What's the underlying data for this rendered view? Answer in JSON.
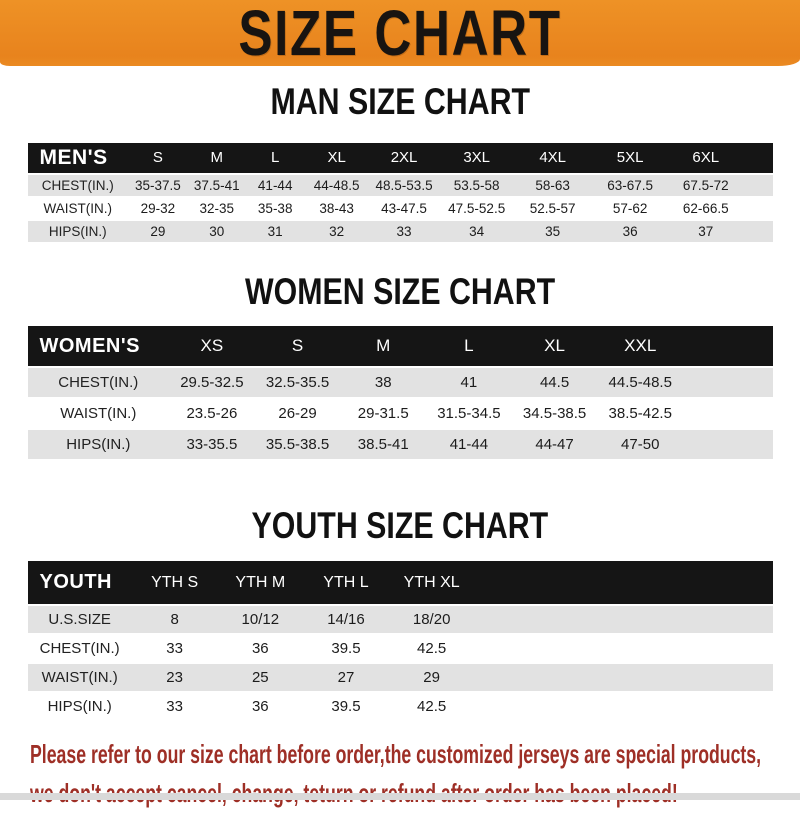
{
  "banner": {
    "title": "SIZE CHART"
  },
  "sections": [
    {
      "title": "MAN SIZE CHART",
      "header_label": "MEN'S",
      "columns": [
        "S",
        "M",
        "L",
        "XL",
        "2XL",
        "3XL",
        "4XL",
        "5XL",
        "6XL"
      ],
      "rows": [
        {
          "label": "CHEST(IN.)",
          "values": [
            "35-37.5",
            "37.5-41",
            "41-44",
            "44-48.5",
            "48.5-53.5",
            "53.5-58",
            "58-63",
            "63-67.5",
            "67.5-72"
          ]
        },
        {
          "label": "WAIST(IN.)",
          "values": [
            "29-32",
            "32-35",
            "35-38",
            "38-43",
            "43-47.5",
            "47.5-52.5",
            "52.5-57",
            "57-62",
            "62-66.5"
          ]
        },
        {
          "label": "HIPS(IN.)",
          "values": [
            "29",
            "30",
            "31",
            "32",
            "33",
            "34",
            "35",
            "36",
            "37"
          ]
        }
      ]
    },
    {
      "title": "WOMEN SIZE CHART",
      "header_label": "WOMEN'S",
      "columns": [
        "XS",
        "S",
        "M",
        "L",
        "XL",
        "XXL"
      ],
      "rows": [
        {
          "label": "CHEST(IN.)",
          "values": [
            "29.5-32.5",
            "32.5-35.5",
            "38",
            "41",
            "44.5",
            "44.5-48.5"
          ]
        },
        {
          "label": "WAIST(IN.)",
          "values": [
            "23.5-26",
            "26-29",
            "29-31.5",
            "31.5-34.5",
            "34.5-38.5",
            "38.5-42.5"
          ]
        },
        {
          "label": "HIPS(IN.)",
          "values": [
            "33-35.5",
            "35.5-38.5",
            "38.5-41",
            "41-44",
            "44-47",
            "47-50"
          ]
        }
      ]
    },
    {
      "title": "YOUTH SIZE CHART",
      "header_label": "YOUTH",
      "columns": [
        "YTH S",
        "YTH M",
        "YTH L",
        "YTH XL"
      ],
      "rows": [
        {
          "label": "U.S.SIZE",
          "values": [
            "8",
            "10/12",
            "14/16",
            "18/20"
          ]
        },
        {
          "label": "CHEST(IN.)",
          "values": [
            "33",
            "36",
            "39.5",
            "42.5"
          ]
        },
        {
          "label": "WAIST(IN.)",
          "values": [
            "23",
            "25",
            "27",
            "29"
          ]
        },
        {
          "label": "HIPS(IN.)",
          "values": [
            "33",
            "36",
            "39.5",
            "42.5"
          ]
        }
      ]
    }
  ],
  "footer": {
    "line1": "Please refer to our size chart before order,the customized jerseys are special products,",
    "line2": "we don't accept cancel, change, teturn or refund after order has been placed!"
  },
  "colors": {
    "banner_bg": "#E8861E",
    "table_header_bg": "#151515",
    "shaded_row_bg": "#E2E2E2",
    "footer_text": "#9E2F26"
  }
}
